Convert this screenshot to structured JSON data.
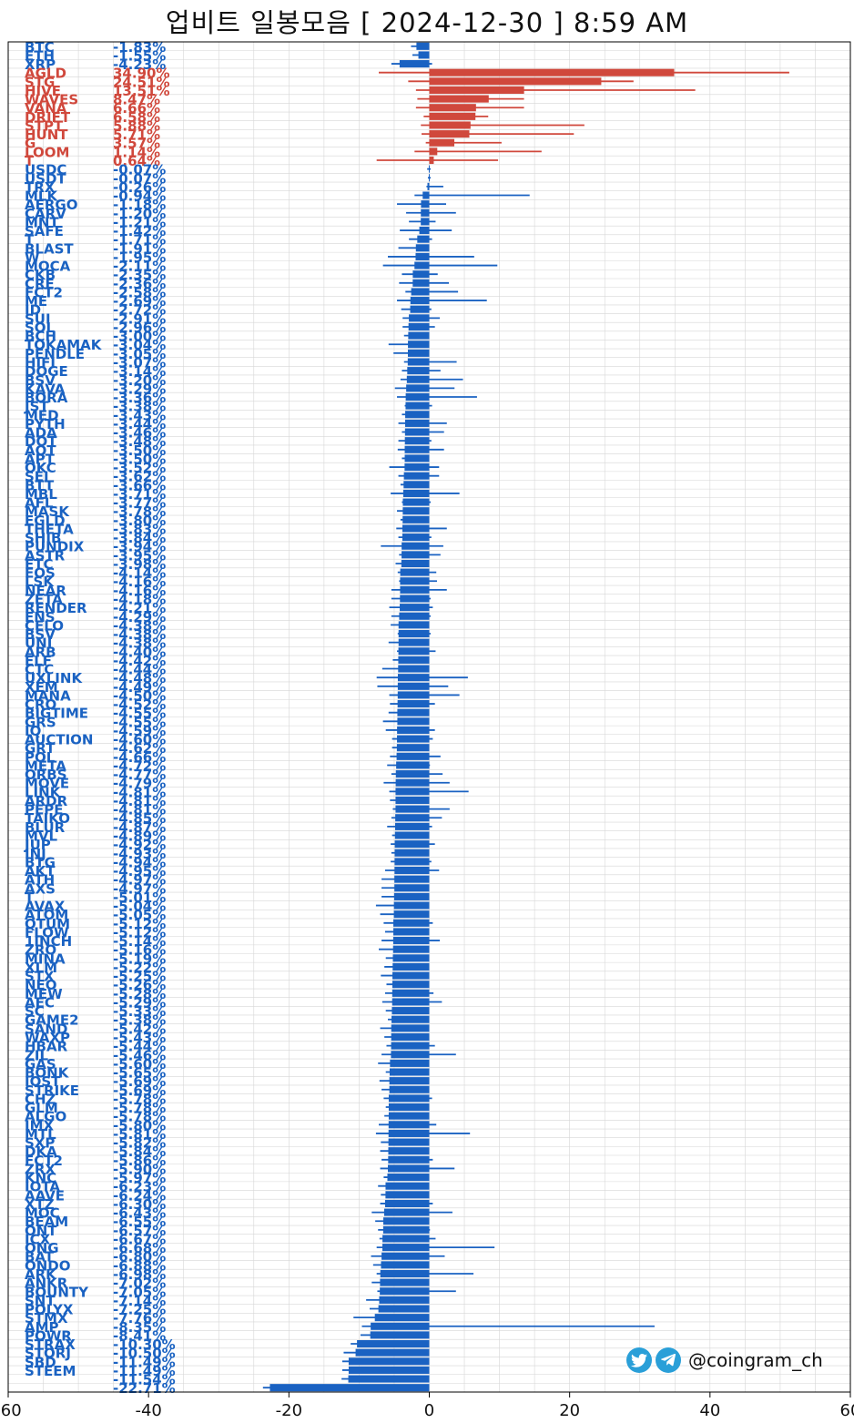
{
  "title": "업비트 일봉모음 [ 2024-12-30 ]  8:59 AM",
  "watermark": "@coingram_ch",
  "colors": {
    "up": "#d0483c",
    "down": "#1a62c2",
    "grid": "#cccccc"
  },
  "chart_data": {
    "type": "bar",
    "orientation": "horizontal",
    "xlim": [
      -60,
      60
    ],
    "xticks": [
      -60,
      -40,
      -20,
      0,
      20,
      40,
      60
    ],
    "grid": true,
    "categories": [
      "BTC",
      "ETH",
      "XRP",
      "AGLD",
      "STG",
      "HIVE",
      "WAVES",
      "VANA",
      "DRIFT",
      "STPT",
      "HUNT",
      "G",
      "LOOM",
      "T",
      "USDC",
      "USDT",
      "TRX",
      "MLK",
      "AERGO",
      "CARV",
      "MNT",
      "SAFE",
      "T",
      "BLAST",
      "W",
      "MOCA",
      "CKB",
      "CRE",
      "FCT2",
      "ME",
      "ID",
      "SUI",
      "SOL",
      "BCH",
      "TOKAMAK",
      "PENDLE",
      "HIFI",
      "DOGE",
      "BSV",
      "KAVA",
      "BORA",
      "JST",
      "MED",
      "PYTH",
      "ADA",
      "DOT",
      "AQT",
      "APT",
      "OKC",
      "SEI",
      "BTT",
      "MBL",
      "AFL",
      "MASK",
      "EGLD",
      "THETA",
      "SHIB",
      "PUNDIX",
      "ASTR",
      "ETC",
      "EOS",
      "LSK",
      "NEAR",
      "ZETA",
      "RENDER",
      "ENS",
      "CELO",
      "BSV",
      "UNI",
      "ARB",
      "ELF",
      "CTC",
      "UXLINK",
      "XEM",
      "MANA",
      "CRO",
      "BIGTIME",
      "GRS",
      "IQ",
      "AUCTION",
      "GRT",
      "POL",
      "META",
      "ORBS",
      "MOVE",
      "LINK",
      "ARDR",
      "PEPE",
      "TAIKO",
      "BLUR",
      "MVL",
      "JUP",
      "INJ",
      "BTG",
      "AKT",
      "ATH",
      "AXS",
      "T",
      "AVAX",
      "ATOM",
      "QTUM",
      "FLOW",
      "1INCH",
      "ZRO",
      "MINA",
      "XLM",
      "STX",
      "NEO",
      "MEW",
      "AEC",
      "SC",
      "GAME2",
      "SAND",
      "WAXP",
      "HBAR",
      "ZIL",
      "GAS",
      "BONK",
      "IOST",
      "STRIKE",
      "CHZ",
      "GLM",
      "ALGO",
      "IMX",
      "MTL",
      "SXP",
      "DKA",
      "FCT2",
      "ZRX",
      "KNC",
      "IOTA",
      "AAVE",
      "XTZ",
      "MOC",
      "BEAM",
      "ONT",
      "ICX",
      "ONG",
      "BAT",
      "ONDO",
      "ARK",
      "ANKR",
      "BOUNTY",
      "SNT",
      "POLYX",
      "STMX",
      "AMP",
      "POWR",
      "STRAX",
      "STORJ",
      "SBD",
      "STEEM"
    ],
    "labels": [
      "-1.83%",
      "-1.55%",
      "-4.23%",
      "34.90%",
      "24.51%",
      "13.51%",
      "8.47%",
      "6.66%",
      "6.58%",
      "5.88%",
      "5.71%",
      "3.57%",
      "1.14%",
      "0.64%",
      "-0.07%",
      "-0.07%",
      "-0.26%",
      "-0.94%",
      "-1.18%",
      "-1.20%",
      "-1.21%",
      "-1.42%",
      "-1.71%",
      "-1.91%",
      "-1.95%",
      "-2.11%",
      "-2.35%",
      "-2.36%",
      "-2.58%",
      "-2.69%",
      "-2.72%",
      "-2.91%",
      "-2.96%",
      "-3.00%",
      "-3.04%",
      "-3.05%",
      "-3.07%",
      "-3.14%",
      "-3.20%",
      "-3.29%",
      "-3.36%",
      "-3.38%",
      "-3.43%",
      "-3.44%",
      "-3.46%",
      "-3.48%",
      "-3.50%",
      "-3.50%",
      "-3.52%",
      "-3.62%",
      "-3.66%",
      "-3.71%",
      "-3.77%",
      "-3.78%",
      "-3.80%",
      "-3.83%",
      "-3.84%",
      "-3.94%",
      "-3.95%",
      "-3.98%",
      "-4.14%",
      "-4.16%",
      "-4.16%",
      "-4.18%",
      "-4.21%",
      "-4.29%",
      "-4.38%",
      "-4.38%",
      "-4.38%",
      "-4.40%",
      "-4.42%",
      "-4.44%",
      "-4.48%",
      "-4.49%",
      "-4.50%",
      "-4.52%",
      "-4.55%",
      "-4.55%",
      "-4.59%",
      "-4.60%",
      "-4.62%",
      "-4.66%",
      "-4.72%",
      "-4.77%",
      "-4.79%",
      "-4.81%",
      "-4.81%",
      "-4.81%",
      "-4.85%",
      "-4.87%",
      "-4.89%",
      "-4.92%",
      "-4.93%",
      "-4.94%",
      "-4.95%",
      "-4.97%",
      "-4.97%",
      "-5.01%",
      "-5.04%",
      "-5.05%",
      "-5.12%",
      "-5.12%",
      "-5.14%",
      "-5.16%",
      "-5.19%",
      "-5.22%",
      "-5.25%",
      "-5.26%",
      "-5.28%",
      "-5.29%",
      "-5.33%",
      "-5.38%",
      "-5.42%",
      "-5.43%",
      "-5.44%",
      "-5.46%",
      "-5.60%",
      "-5.65%",
      "-5.69%",
      "-5.69%",
      "-5.78%",
      "-5.78%",
      "-5.78%",
      "-5.80%",
      "-5.81%",
      "-5.82%",
      "-5.84%",
      "-5.86%",
      "-5.90%",
      "-5.97%",
      "-6.23%",
      "-6.24%",
      "-6.30%",
      "-6.43%",
      "-6.55%",
      "-6.57%",
      "-6.67%",
      "-6.68%",
      "-6.80%",
      "-6.88%",
      "-6.98%",
      "-7.02%",
      "-7.05%",
      "-7.14%",
      "-7.25%",
      "-7.76%",
      "-8.35%",
      "-8.41%",
      "-10.30%",
      "-10.50%",
      "-11.49%",
      "-11.49%",
      "-11.54%",
      "-22.71%"
    ],
    "values": [
      -1.83,
      -1.55,
      -4.23,
      34.9,
      24.51,
      13.51,
      8.47,
      6.66,
      6.58,
      5.88,
      5.71,
      3.57,
      1.14,
      0.64,
      -0.07,
      -0.07,
      -0.26,
      -0.94,
      -1.18,
      -1.2,
      -1.21,
      -1.42,
      -1.71,
      -1.91,
      -1.95,
      -2.11,
      -2.35,
      -2.36,
      -2.58,
      -2.69,
      -2.72,
      -2.91,
      -2.96,
      -3.0,
      -3.04,
      -3.05,
      -3.07,
      -3.14,
      -3.2,
      -3.29,
      -3.36,
      -3.38,
      -3.43,
      -3.44,
      -3.46,
      -3.48,
      -3.5,
      -3.5,
      -3.52,
      -3.62,
      -3.66,
      -3.71,
      -3.77,
      -3.78,
      -3.8,
      -3.83,
      -3.84,
      -3.94,
      -3.95,
      -3.98,
      -4.14,
      -4.16,
      -4.16,
      -4.18,
      -4.21,
      -4.29,
      -4.38,
      -4.38,
      -4.38,
      -4.4,
      -4.42,
      -4.44,
      -4.48,
      -4.49,
      -4.5,
      -4.52,
      -4.55,
      -4.55,
      -4.59,
      -4.6,
      -4.62,
      -4.66,
      -4.72,
      -4.77,
      -4.79,
      -4.81,
      -4.81,
      -4.81,
      -4.85,
      -4.87,
      -4.89,
      -4.92,
      -4.93,
      -4.94,
      -4.95,
      -4.97,
      -4.97,
      -5.01,
      -5.04,
      -5.05,
      -5.12,
      -5.12,
      -5.14,
      -5.16,
      -5.19,
      -5.22,
      -5.25,
      -5.26,
      -5.28,
      -5.29,
      -5.33,
      -5.38,
      -5.42,
      -5.43,
      -5.44,
      -5.46,
      -5.6,
      -5.65,
      -5.69,
      -5.69,
      -5.78,
      -5.78,
      -5.78,
      -5.8,
      -5.81,
      -5.82,
      -5.84,
      -5.86,
      -5.9,
      -5.97,
      -6.23,
      -6.24,
      -6.3,
      -6.43,
      -6.55,
      -6.57,
      -6.67,
      -6.68,
      -6.8,
      -6.88,
      -6.98,
      -7.02,
      -7.05,
      -7.14,
      -7.25,
      -7.76,
      -8.35,
      -8.41,
      -10.3,
      -10.5,
      -11.49,
      -11.49,
      -11.54,
      -22.71
    ],
    "range_low": [
      -2.6,
      -2.4,
      -5.4,
      -7.2,
      -3.0,
      -1.9,
      -1.7,
      -1.9,
      -0.8,
      -1.2,
      -1.1,
      -0.5,
      -2.1,
      -7.5,
      -0.3,
      -0.2,
      -0.4,
      -2.1,
      -4.6,
      -3.3,
      -2.9,
      -4.2,
      -2.9,
      -4.4,
      -5.9,
      -6.6,
      -3.9,
      -4.3,
      -3.4,
      -4.6,
      -4.0,
      -3.8,
      -3.8,
      -3.6,
      -5.8,
      -5.1,
      -3.6,
      -3.9,
      -4.1,
      -4.9,
      -4.6,
      -3.5,
      -3.9,
      -4.4,
      -3.9,
      -4.4,
      -4.5,
      -3.9,
      -5.7,
      -4.4,
      -4.1,
      -5.5,
      -3.9,
      -4.6,
      -4.1,
      -4.7,
      -4.4,
      -6.9,
      -4.3,
      -4.8,
      -4.5,
      -4.3,
      -5.4,
      -5.4,
      -5.7,
      -5.4,
      -5.5,
      -4.5,
      -5.8,
      -4.6,
      -5.2,
      -6.7,
      -7.5,
      -7.4,
      -5.7,
      -5.6,
      -5.8,
      -6.6,
      -6.2,
      -5.3,
      -5.3,
      -5.6,
      -6.0,
      -5.4,
      -6.5,
      -5.7,
      -5.6,
      -5.2,
      -5.4,
      -6.0,
      -5.3,
      -5.5,
      -5.4,
      -5.5,
      -6.3,
      -6.8,
      -6.8,
      -6.8,
      -7.6,
      -7.0,
      -6.5,
      -6.3,
      -6.8,
      -7.2,
      -6.2,
      -6.4,
      -6.9,
      -6.1,
      -6.3,
      -6.7,
      -6.2,
      -5.9,
      -7.0,
      -6.4,
      -6.1,
      -6.8,
      -7.3,
      -6.2,
      -7.1,
      -6.8,
      -6.5,
      -6.2,
      -6.4,
      -7.2,
      -7.6,
      -6.9,
      -7.0,
      -6.8,
      -7.0,
      -6.5,
      -7.3,
      -6.9,
      -7.0,
      -8.2,
      -7.7,
      -7.3,
      -7.1,
      -7.5,
      -8.3,
      -8.0,
      -7.5,
      -8.2,
      -7.4,
      -9.0,
      -8.5,
      -10.8,
      -9.6,
      -9.8,
      -11.2,
      -12.2,
      -12.4,
      -12.4,
      -12.5,
      -23.7
    ],
    "range_high": [
      -0.9,
      -0.4,
      0.4,
      51.3,
      29.1,
      37.9,
      13.5,
      13.5,
      8.4,
      22.1,
      20.6,
      10.3,
      16.0,
      9.8,
      0.2,
      0.2,
      2.0,
      14.3,
      2.4,
      3.8,
      0.9,
      3.2,
      0.4,
      -0.4,
      6.4,
      9.7,
      1.2,
      2.8,
      4.1,
      8.2,
      0.3,
      1.5,
      0.8,
      -0.6,
      -1.1,
      -0.6,
      3.9,
      1.6,
      4.8,
      3.6,
      6.8,
      0.4,
      -0.5,
      2.5,
      2.1,
      0.3,
      2.1,
      -0.9,
      1.4,
      1.4,
      -0.4,
      4.3,
      0.2,
      -0.9,
      -0.7,
      2.5,
      0.3,
      2.0,
      1.6,
      -0.4,
      1.0,
      1.1,
      2.5,
      0.2,
      0.5,
      0.2,
      -0.1,
      0.2,
      -0.2,
      0.9,
      -0.4,
      -0.6,
      5.5,
      2.7,
      4.3,
      0.8,
      -0.1,
      -0.7,
      0.8,
      0.5,
      -0.2,
      1.6,
      0.1,
      1.9,
      2.9,
      5.6,
      -0.3,
      2.9,
      1.8,
      0.4,
      -0.2,
      0.8,
      -0.7,
      0.3,
      1.4,
      -0.7,
      -0.4,
      -1.0,
      -1.4,
      -2.0,
      0.5,
      -1.0,
      1.5,
      -0.8,
      -0.8,
      -0.9,
      -2.0,
      -2.2,
      0.6,
      1.8,
      -0.8,
      -2.0,
      -2.2,
      -0.7,
      0.8,
      3.8,
      -4.3,
      -3.7,
      -0.4,
      -0.9,
      0.4,
      -0.6,
      -4.1,
      1.0,
      5.8,
      -1.4,
      -1.4,
      0.5,
      3.6,
      -0.8,
      -1.1,
      -0.3,
      0.5,
      3.3,
      -1.2,
      0.1,
      0.9,
      9.3,
      2.2,
      -2.0,
      6.3,
      -1.1,
      3.8,
      -4.0,
      -3.2,
      -2.3,
      32.1,
      -8.0,
      -3.9,
      -6.4,
      -9.3,
      -10.0,
      -11.1,
      -10.1,
      3.1,
      8.2
    ]
  }
}
